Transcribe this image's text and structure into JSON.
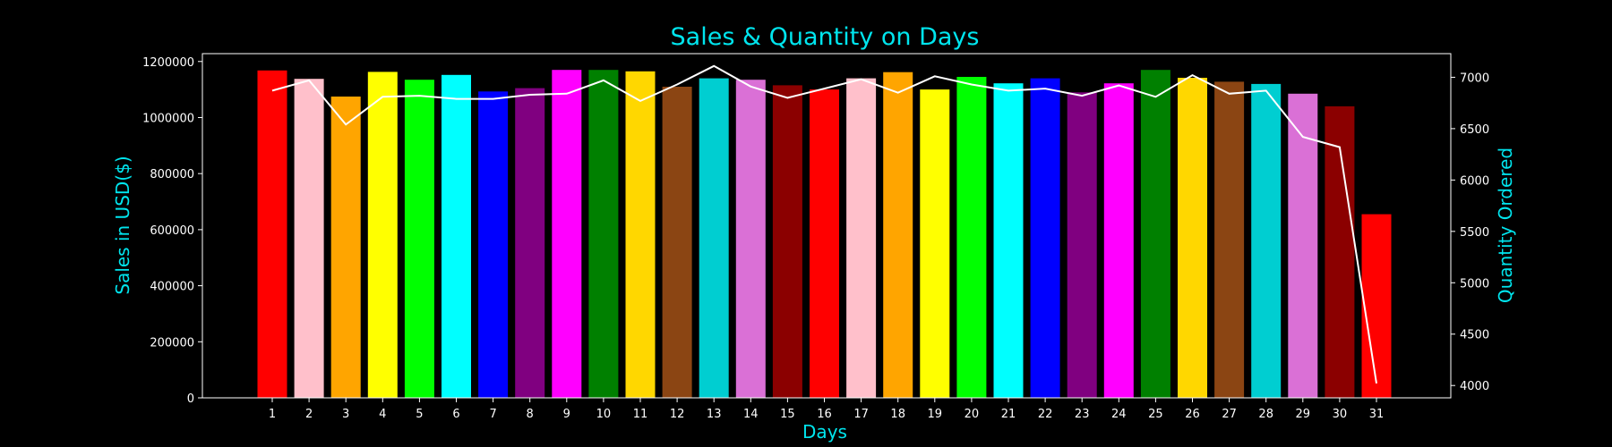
{
  "chart_data": {
    "type": "bar",
    "title": "Sales & Quantity on Days",
    "xlabel": "Days",
    "ylabel": "Sales in USD($)",
    "y2label": "Quantity Ordered",
    "categories": [
      "1",
      "2",
      "3",
      "4",
      "5",
      "6",
      "7",
      "8",
      "9",
      "10",
      "11",
      "12",
      "13",
      "14",
      "15",
      "16",
      "17",
      "18",
      "19",
      "20",
      "21",
      "22",
      "23",
      "24",
      "25",
      "26",
      "27",
      "28",
      "29",
      "30",
      "31"
    ],
    "series": [
      {
        "type": "bar",
        "axis": "left",
        "values": [
          1168000,
          1138000,
          1075000,
          1163000,
          1135000,
          1152000,
          1093000,
          1105000,
          1170000,
          1170000,
          1165000,
          1110000,
          1140000,
          1135000,
          1115000,
          1100000,
          1140000,
          1162000,
          1100000,
          1145000,
          1122000,
          1140000,
          1090000,
          1122000,
          1170000,
          1142000,
          1128000,
          1120000,
          1085000,
          1040000,
          655000
        ]
      },
      {
        "type": "line",
        "axis": "right",
        "values": [
          6870,
          6970,
          6540,
          6810,
          6820,
          6790,
          6790,
          6830,
          6840,
          6970,
          6770,
          6930,
          7110,
          6910,
          6800,
          6890,
          6980,
          6850,
          7010,
          6930,
          6870,
          6890,
          6820,
          6920,
          6810,
          7020,
          6840,
          6870,
          6420,
          6320,
          4020
        ]
      }
    ],
    "bar_colors": [
      "#ff0000",
      "#ffc0cb",
      "#ffa500",
      "#ffff00",
      "#00ff00",
      "#00ffff",
      "#0000ff",
      "#800080",
      "#ff00ff",
      "#008000",
      "#ffd700",
      "#8b4513",
      "#00ced1",
      "#da70d6",
      "#8b0000",
      "#ff0000",
      "#ffc0cb",
      "#ffa500",
      "#ffff00",
      "#00ff00",
      "#00ffff",
      "#0000ff",
      "#800080",
      "#ff00ff",
      "#008000",
      "#ffd700",
      "#8b4513",
      "#00ced1",
      "#da70d6",
      "#8b0000",
      "#ff0000"
    ],
    "line_color": "#ffffff",
    "title_color": "#00e5ee",
    "background": "#000000",
    "ylim": [
      0,
      1228000
    ],
    "yticks": [
      0,
      200000,
      400000,
      600000,
      800000,
      1000000,
      1200000
    ],
    "y2lim": [
      3880,
      7230
    ],
    "y2ticks": [
      4000,
      4500,
      5000,
      5500,
      6000,
      6500,
      7000
    ],
    "grid": false,
    "legend": "none"
  }
}
